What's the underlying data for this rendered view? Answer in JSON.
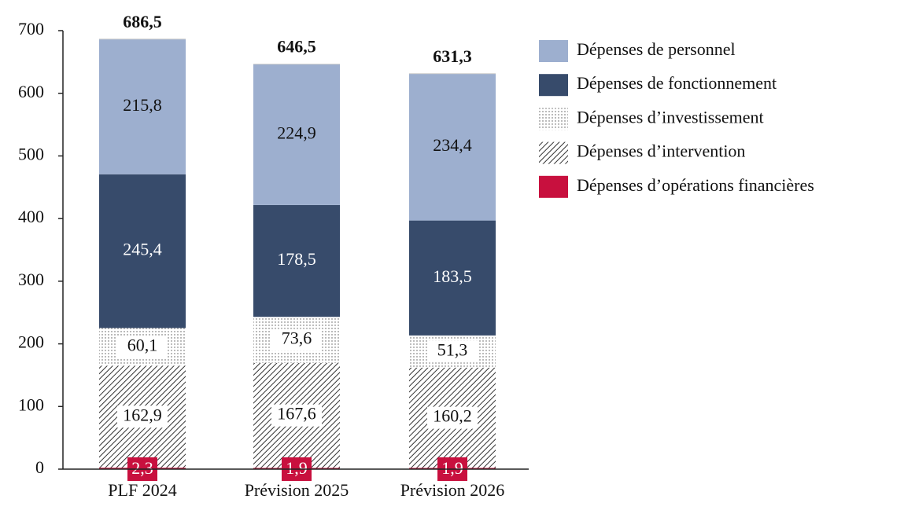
{
  "chart_data": {
    "type": "stacked_bar",
    "categories": [
      "PLF 2024",
      "Prévision 2025",
      "Prévision 2026"
    ],
    "series": [
      {
        "name": "Dépenses de personnel",
        "color": "#9dafcf",
        "values": [
          215.8,
          224.9,
          234.4
        ],
        "value_labels": [
          "215,8",
          "224,9",
          "234,4"
        ]
      },
      {
        "name": "Dépenses de fonctionnement",
        "color": "#374b6b",
        "values": [
          245.4,
          178.5,
          183.5
        ],
        "value_labels": [
          "245,4",
          "178,5",
          "183,5"
        ]
      },
      {
        "name": "Dépenses d’investissement",
        "color": "#555555",
        "pattern": "dots",
        "values": [
          60.1,
          73.6,
          51.3
        ],
        "value_labels": [
          "60,1",
          "73,6",
          "51,3"
        ]
      },
      {
        "name": "Dépenses d’intervention",
        "color": "#333333",
        "pattern": "hatch",
        "values": [
          162.9,
          167.6,
          160.2
        ],
        "value_labels": [
          "162,9",
          "167,6",
          "160,2"
        ]
      },
      {
        "name": "Dépenses d’opérations financières",
        "color": "#c8103e",
        "values": [
          2.3,
          1.9,
          1.9
        ],
        "value_labels": [
          "2,3",
          "1,9",
          "1,9"
        ]
      }
    ],
    "totals": {
      "values": [
        686.5,
        646.5,
        631.3
      ],
      "value_labels": [
        "686,5",
        "646,5",
        "631,3"
      ]
    },
    "ylim": [
      0,
      700
    ],
    "yticks": [
      0,
      100,
      200,
      300,
      400,
      500,
      600,
      700
    ],
    "legend": "right"
  }
}
